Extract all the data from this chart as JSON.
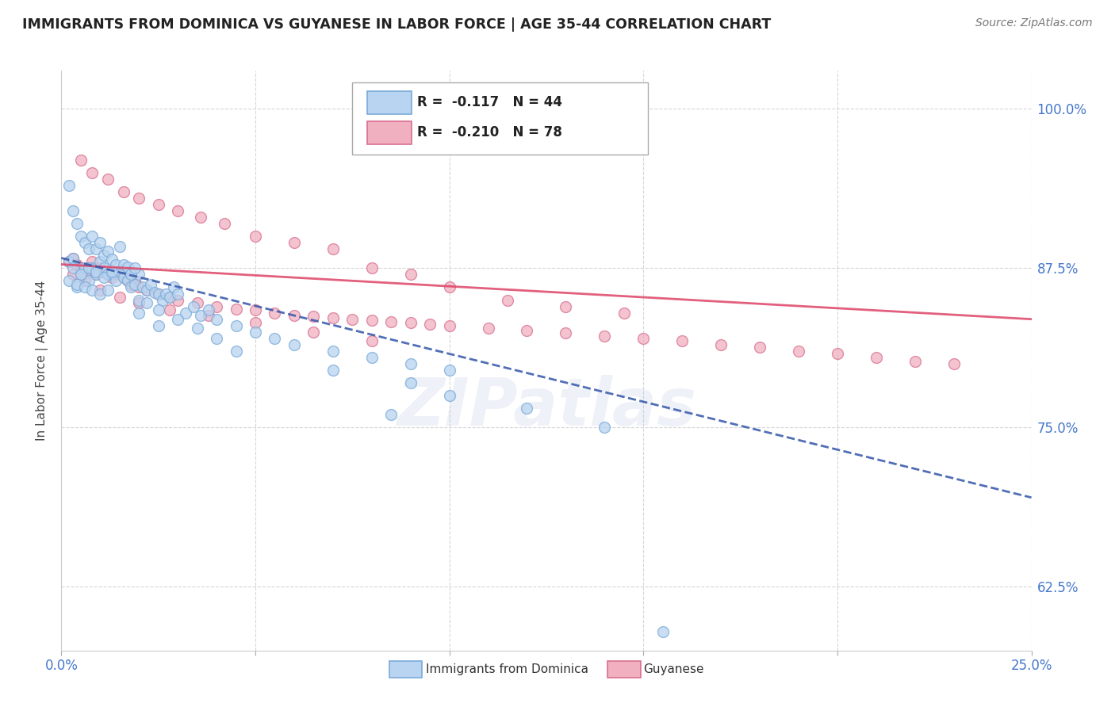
{
  "title": "IMMIGRANTS FROM DOMINICA VS GUYANESE IN LABOR FORCE | AGE 35-44 CORRELATION CHART",
  "source": "Source: ZipAtlas.com",
  "ylabel": "In Labor Force | Age 35-44",
  "xlim": [
    0.0,
    0.25
  ],
  "ylim": [
    0.575,
    1.03
  ],
  "yticks": [
    0.625,
    0.75,
    0.875,
    1.0
  ],
  "ytick_labels": [
    "62.5%",
    "75.0%",
    "87.5%",
    "100.0%"
  ],
  "xticks": [
    0.0,
    0.05,
    0.1,
    0.15,
    0.2,
    0.25
  ],
  "xtick_labels": [
    "0.0%",
    "",
    "",
    "",
    "",
    "25.0%"
  ],
  "dominica_color": "#b8d4f0",
  "dominica_edge_color": "#7aaad8",
  "guyanese_color": "#f0b0c0",
  "guyanese_edge_color": "#d87090",
  "trend_dominica_color": "#3355aa",
  "trend_guyanese_color": "#dd4466",
  "tick_color": "#4477cc",
  "grid_color": "#cccccc",
  "background_color": "#ffffff",
  "watermark": "ZIPatlas",
  "legend_label_1": "R =  -0.117   N = 44",
  "legend_label_2": "R =  -0.210   N = 78",
  "bottom_label_1": "Immigrants from Dominica",
  "bottom_label_2": "Guyanese",
  "dom_trend_x0": 0.0,
  "dom_trend_y0": 0.883,
  "dom_trend_x1": 0.25,
  "dom_trend_y1": 0.695,
  "guy_trend_x0": 0.0,
  "guy_trend_y0": 0.878,
  "guy_trend_x1": 0.25,
  "guy_trend_y1": 0.835,
  "dominica_x": [
    0.002,
    0.003,
    0.004,
    0.005,
    0.006,
    0.007,
    0.008,
    0.009,
    0.01,
    0.011,
    0.012,
    0.013,
    0.014,
    0.015,
    0.016,
    0.017,
    0.018,
    0.019,
    0.02,
    0.021,
    0.022,
    0.023,
    0.024,
    0.025,
    0.026,
    0.027,
    0.028,
    0.029,
    0.03,
    0.032,
    0.034,
    0.036,
    0.038,
    0.04,
    0.045,
    0.05,
    0.055,
    0.06,
    0.07,
    0.08,
    0.09,
    0.1,
    0.085,
    0.155
  ],
  "dominica_y": [
    0.88,
    0.883,
    0.86,
    0.87,
    0.875,
    0.865,
    0.875,
    0.87,
    0.88,
    0.875,
    0.87,
    0.87,
    0.865,
    0.872,
    0.868,
    0.865,
    0.86,
    0.862,
    0.87,
    0.86,
    0.858,
    0.862,
    0.856,
    0.855,
    0.85,
    0.855,
    0.852,
    0.86,
    0.855,
    0.84,
    0.845,
    0.838,
    0.842,
    0.835,
    0.83,
    0.825,
    0.82,
    0.815,
    0.81,
    0.805,
    0.8,
    0.795,
    0.76,
    0.59
  ],
  "dominica_x2": [
    0.002,
    0.003,
    0.004,
    0.005,
    0.006,
    0.007,
    0.008,
    0.009,
    0.01,
    0.011,
    0.012,
    0.013,
    0.014,
    0.015,
    0.016,
    0.017,
    0.018,
    0.019,
    0.003,
    0.005,
    0.007,
    0.009,
    0.011,
    0.013,
    0.002,
    0.004,
    0.006,
    0.008,
    0.01,
    0.012,
    0.02,
    0.022,
    0.025,
    0.03,
    0.035,
    0.04,
    0.045,
    0.02,
    0.025,
    0.07,
    0.09,
    0.1,
    0.12,
    0.14
  ],
  "dominica_y2": [
    0.94,
    0.92,
    0.91,
    0.9,
    0.895,
    0.89,
    0.9,
    0.89,
    0.895,
    0.885,
    0.888,
    0.882,
    0.878,
    0.892,
    0.878,
    0.876,
    0.87,
    0.875,
    0.875,
    0.87,
    0.875,
    0.872,
    0.868,
    0.872,
    0.865,
    0.862,
    0.86,
    0.858,
    0.855,
    0.858,
    0.85,
    0.848,
    0.842,
    0.835,
    0.828,
    0.82,
    0.81,
    0.84,
    0.83,
    0.795,
    0.785,
    0.775,
    0.765,
    0.75
  ],
  "guyanese_x": [
    0.002,
    0.003,
    0.004,
    0.005,
    0.006,
    0.007,
    0.008,
    0.009,
    0.01,
    0.011,
    0.012,
    0.013,
    0.014,
    0.015,
    0.016,
    0.017,
    0.018,
    0.019,
    0.02,
    0.022,
    0.025,
    0.028,
    0.03,
    0.035,
    0.04,
    0.045,
    0.05,
    0.055,
    0.06,
    0.065,
    0.07,
    0.075,
    0.08,
    0.085,
    0.09,
    0.095,
    0.1,
    0.11,
    0.12,
    0.13,
    0.14,
    0.15,
    0.16,
    0.17,
    0.18,
    0.19,
    0.2,
    0.21,
    0.22,
    0.23,
    0.005,
    0.008,
    0.012,
    0.016,
    0.02,
    0.025,
    0.03,
    0.036,
    0.042,
    0.05,
    0.06,
    0.07,
    0.08,
    0.09,
    0.1,
    0.115,
    0.13,
    0.145,
    0.003,
    0.006,
    0.01,
    0.015,
    0.02,
    0.028,
    0.038,
    0.05,
    0.065,
    0.08
  ],
  "guyanese_y": [
    0.88,
    0.883,
    0.878,
    0.875,
    0.87,
    0.875,
    0.88,
    0.87,
    0.875,
    0.872,
    0.87,
    0.868,
    0.872,
    0.87,
    0.868,
    0.865,
    0.862,
    0.865,
    0.86,
    0.858,
    0.855,
    0.852,
    0.85,
    0.848,
    0.845,
    0.843,
    0.842,
    0.84,
    0.838,
    0.837,
    0.836,
    0.835,
    0.834,
    0.833,
    0.832,
    0.831,
    0.83,
    0.828,
    0.826,
    0.824,
    0.822,
    0.82,
    0.818,
    0.815,
    0.813,
    0.81,
    0.808,
    0.805,
    0.802,
    0.8,
    0.96,
    0.95,
    0.945,
    0.935,
    0.93,
    0.925,
    0.92,
    0.915,
    0.91,
    0.9,
    0.895,
    0.89,
    0.875,
    0.87,
    0.86,
    0.85,
    0.845,
    0.84,
    0.87,
    0.865,
    0.858,
    0.852,
    0.848,
    0.842,
    0.838,
    0.832,
    0.825,
    0.818
  ]
}
